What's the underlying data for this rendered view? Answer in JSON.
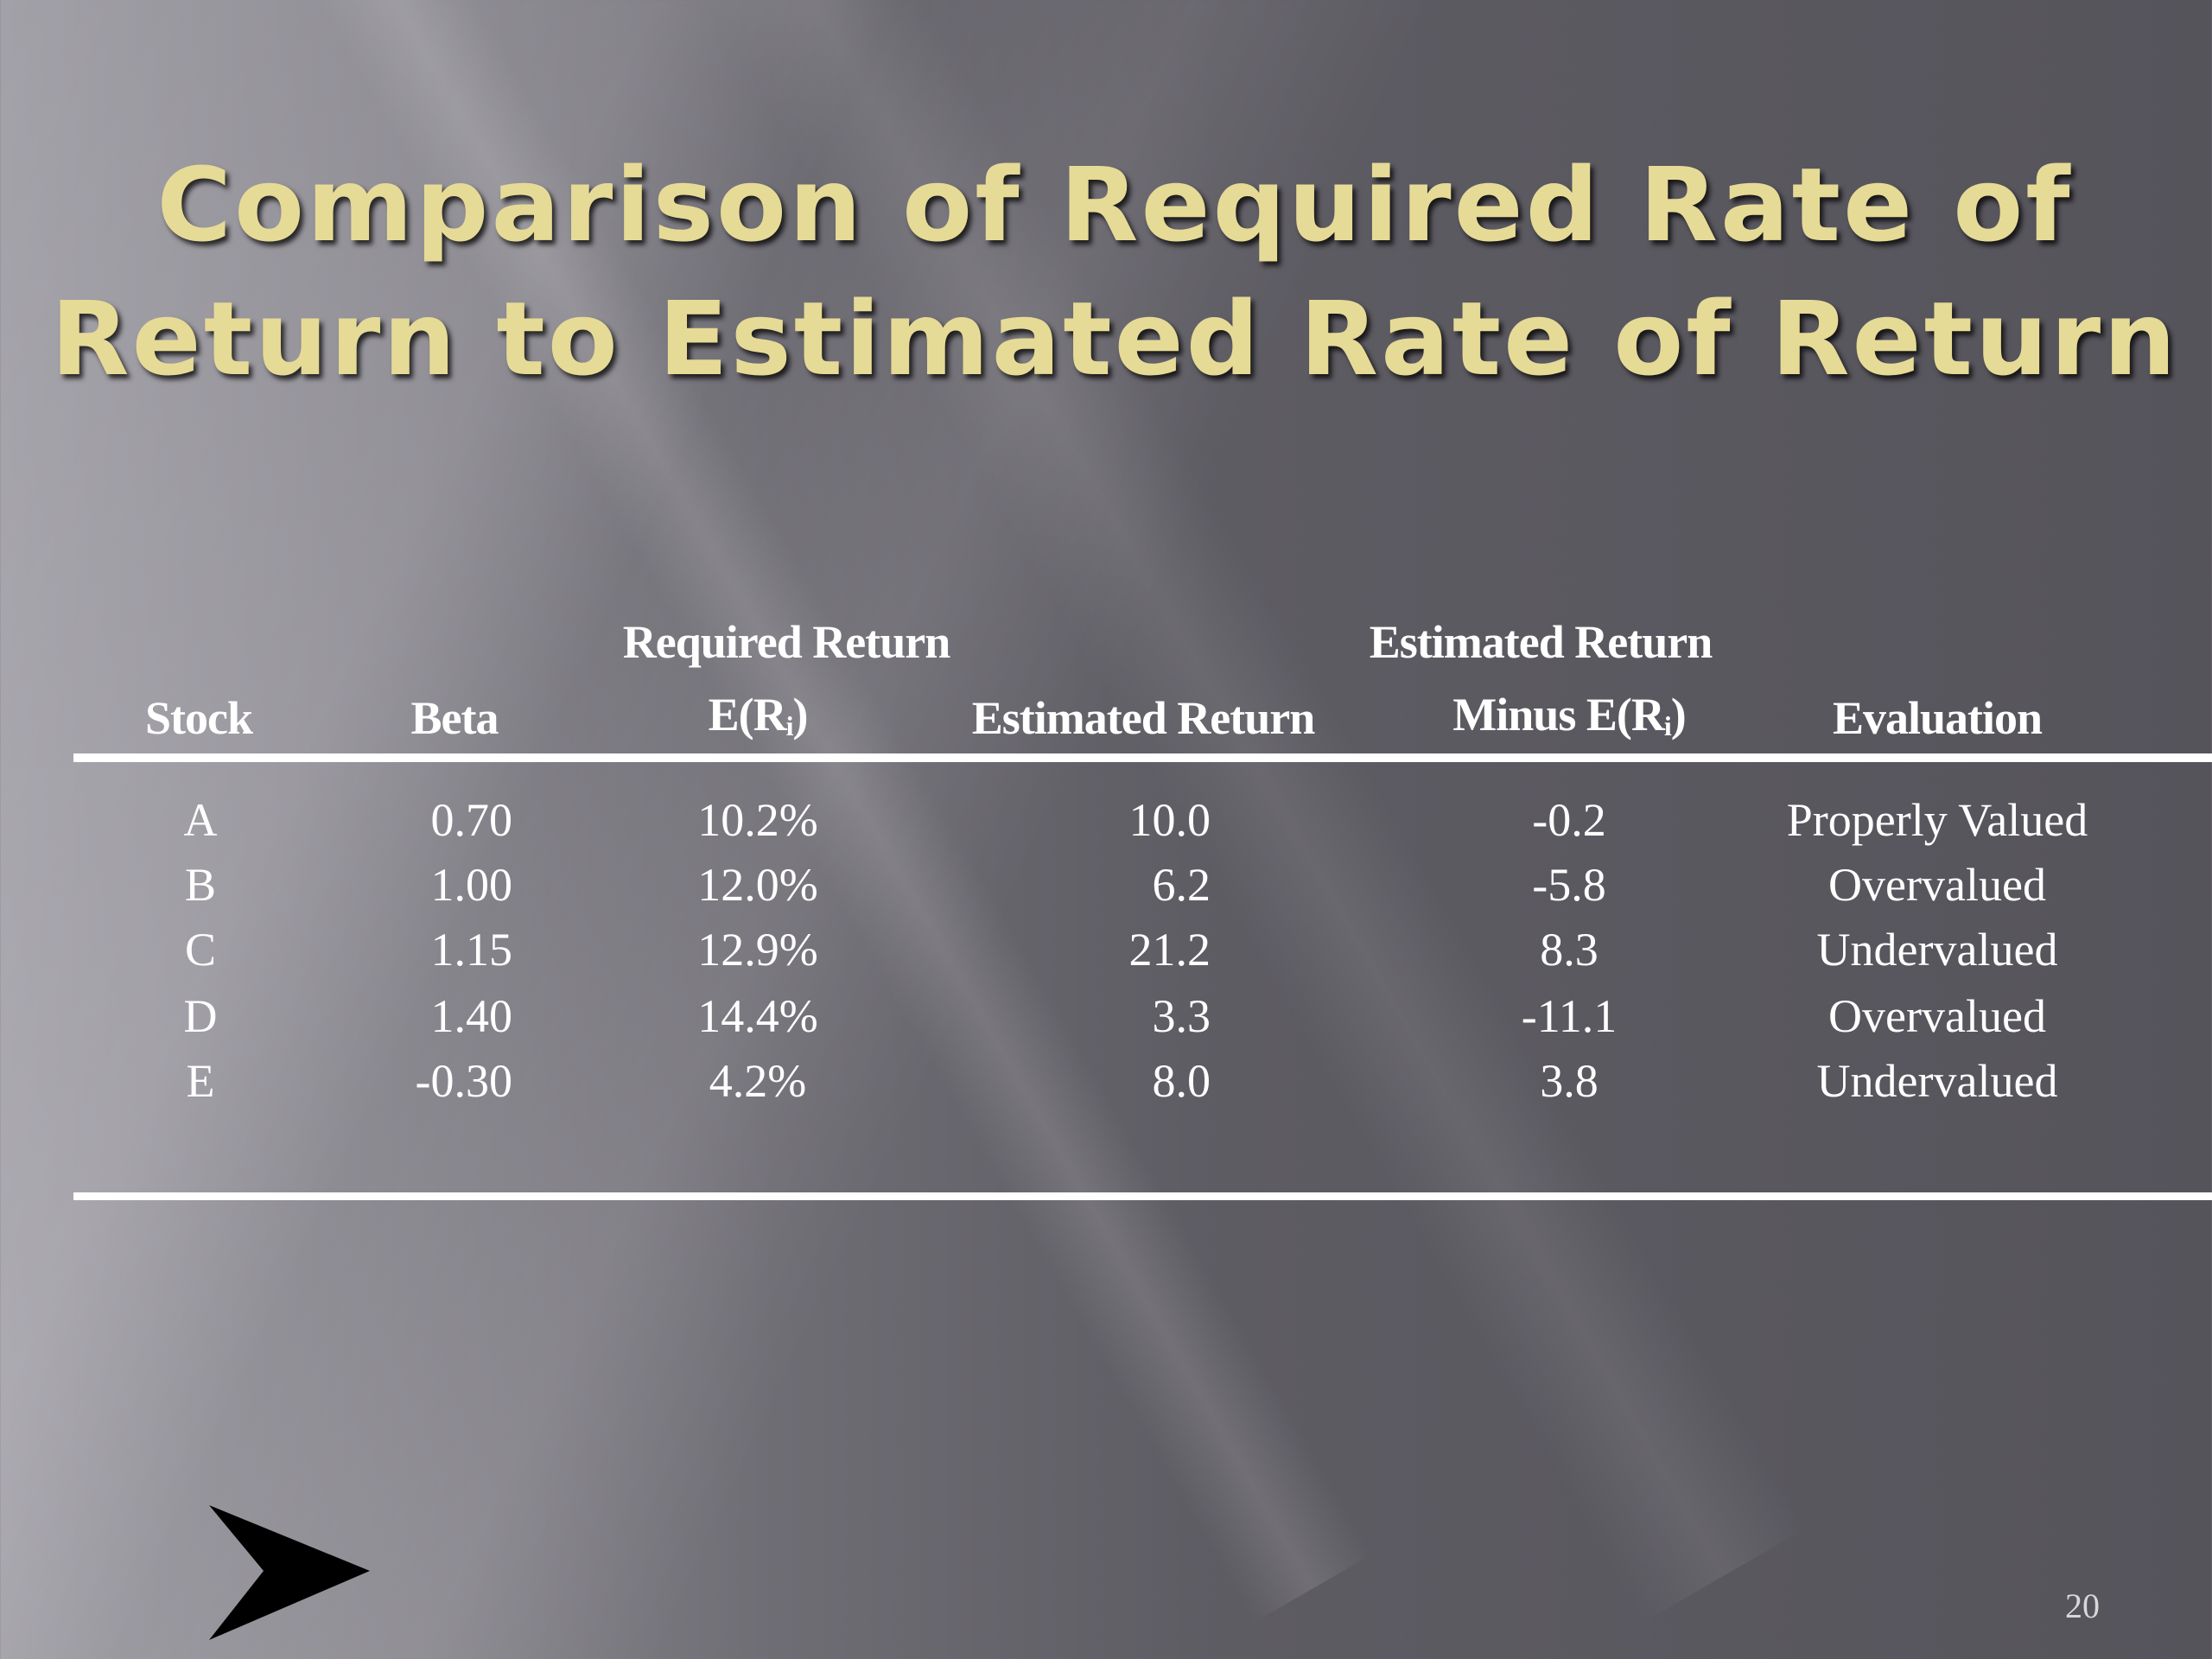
{
  "slide": {
    "title_lines": [
      "Comparison of Required Rate of",
      "Return to Estimated Rate of Return"
    ],
    "page_number": "20",
    "nav_icon": "arrow-right-icon"
  },
  "table": {
    "headers": {
      "stock": "Stock",
      "beta": "Beta",
      "required_top": "Required Return",
      "required_bottom": "E(R",
      "required_sub": "i",
      "required_close": ")",
      "estimated": "Estimated Return",
      "diff_top": "Estimated Return",
      "diff_bottom": "Minus E(R",
      "diff_sub": "i",
      "diff_close": ")",
      "evaluation": "Evaluation"
    },
    "rows": [
      {
        "stock": "A",
        "beta": "0.70",
        "required": "10.2%",
        "estimated": "10.0",
        "diff": "-0.2",
        "evaluation": "Properly Valued"
      },
      {
        "stock": "B",
        "beta": "1.00",
        "required": "12.0%",
        "estimated": "6.2",
        "diff": "-5.8",
        "evaluation": "Overvalued"
      },
      {
        "stock": "C",
        "beta": "1.15",
        "required": "12.9%",
        "estimated": "21.2",
        "diff": "8.3",
        "evaluation": "Undervalued"
      },
      {
        "stock": "D",
        "beta": "1.40",
        "required": "14.4%",
        "estimated": "3.3",
        "diff": "-11.1",
        "evaluation": "Overvalued"
      },
      {
        "stock": "E",
        "beta": "-0.30",
        "required": "4.2%",
        "estimated": "8.0",
        "diff": "3.8",
        "evaluation": "Undervalued"
      }
    ]
  },
  "colors": {
    "title": "#e6da97",
    "text": "#ffffff"
  }
}
